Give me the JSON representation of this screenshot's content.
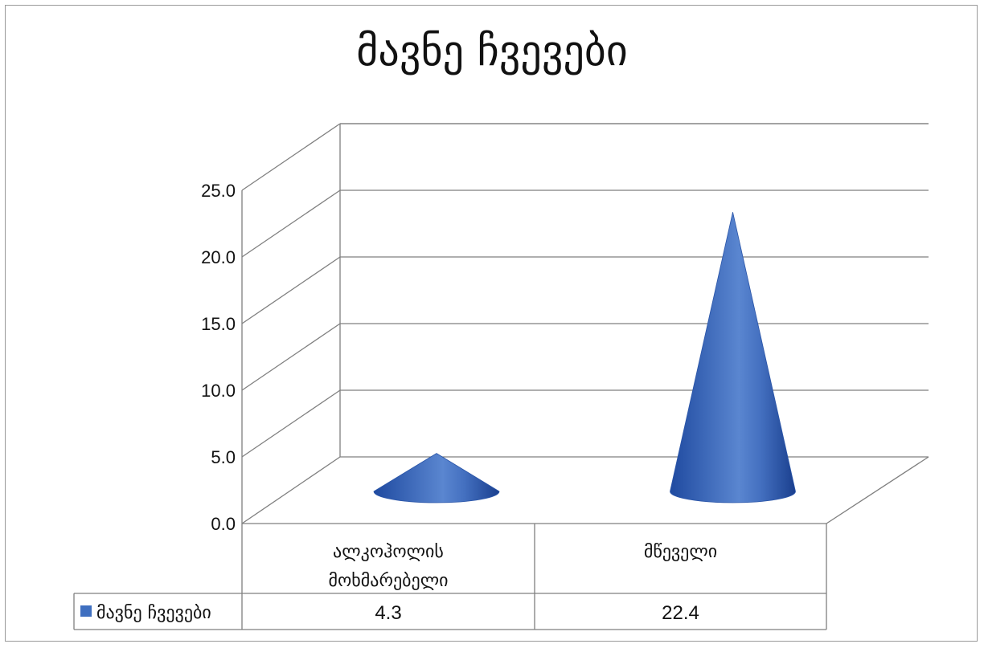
{
  "chart_data": {
    "type": "bar",
    "shape": "3d-cone",
    "title": "მავნე ჩვევები",
    "categories": [
      "ალკოჰოლის მოხმარებელი",
      "მწეველი"
    ],
    "category_label_lines": [
      [
        "ალკოჰოლის",
        "მოხმარებელი"
      ],
      [
        "მწეველი"
      ]
    ],
    "series": [
      {
        "name": "მავნე ჩვევები",
        "values": [
          4.3,
          22.4
        ],
        "value_labels": [
          "4.3",
          "22.4"
        ],
        "color": "#3f6fc0"
      }
    ],
    "ylim": [
      0,
      25
    ],
    "yticks": [
      "0.0",
      "5.0",
      "10.0",
      "15.0",
      "20.0",
      "25.0"
    ],
    "ytick_values": [
      0,
      5,
      10,
      15,
      20,
      25
    ],
    "grid": true,
    "legend": "data-table"
  }
}
